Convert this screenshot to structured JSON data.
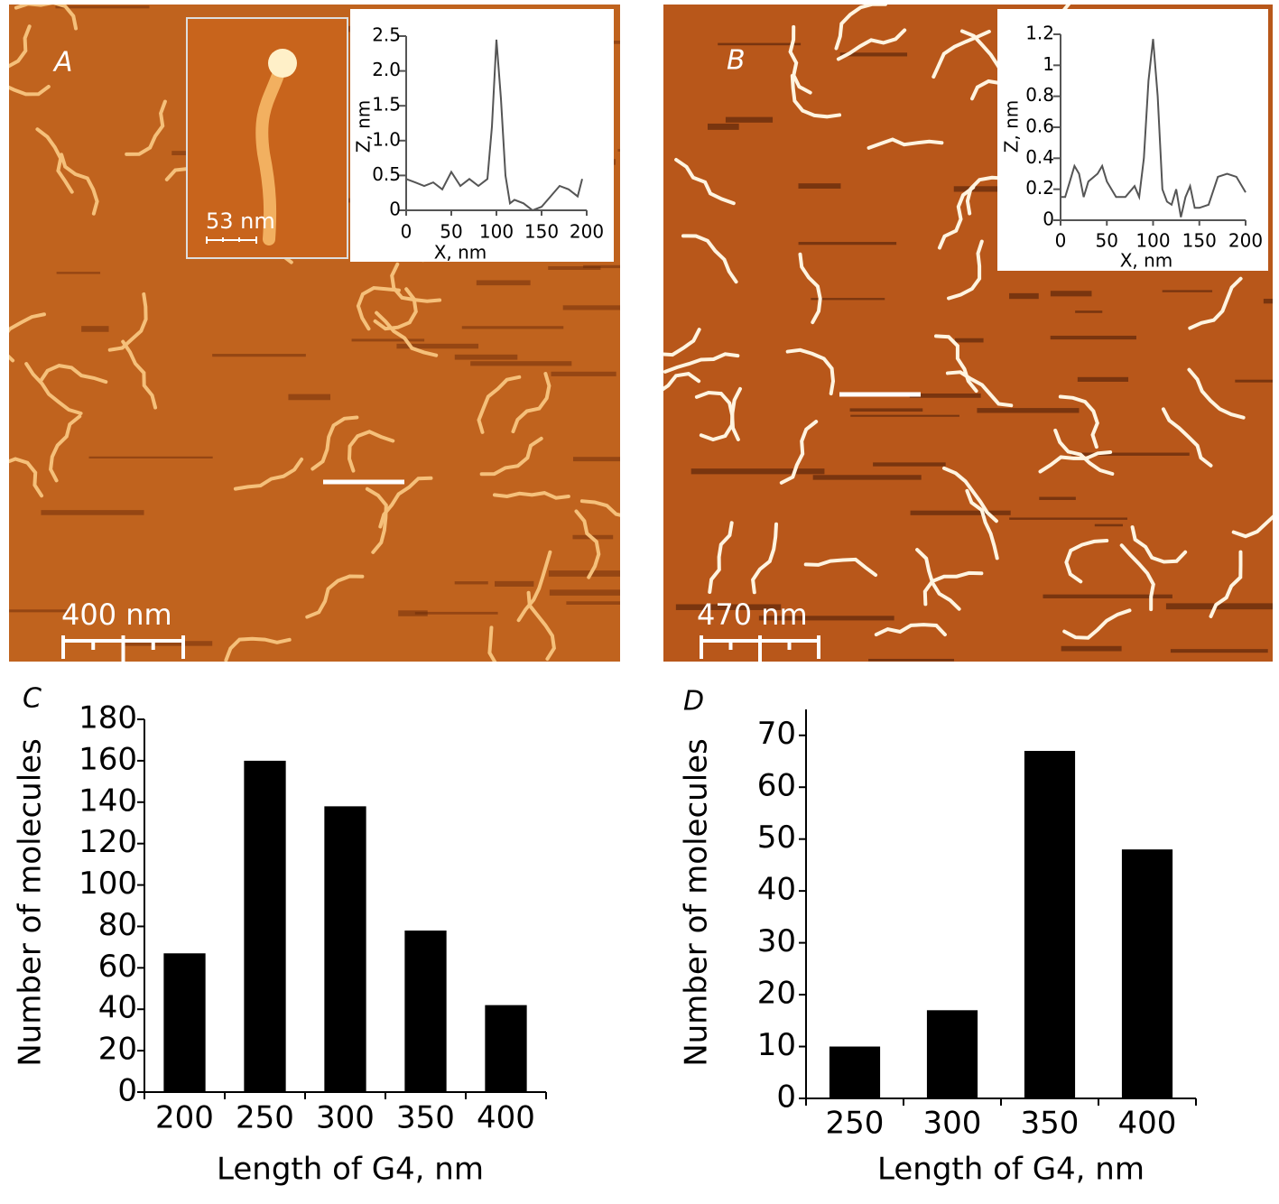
{
  "images": [
    {
      "panel_label": "A",
      "scale_bar": "400 nm",
      "inset_scale_bar": "53 nm"
    },
    {
      "panel_label": "B",
      "scale_bar": "470 nm"
    }
  ],
  "chart_data": [
    {
      "type": "line",
      "x_label": "X, nm",
      "y_label": "Z, nm",
      "x": [
        0,
        10,
        20,
        30,
        40,
        50,
        60,
        70,
        80,
        90,
        95,
        100,
        105,
        110,
        115,
        120,
        130,
        140,
        150,
        160,
        170,
        180,
        190,
        195
      ],
      "series": [
        {
          "color": "#555555",
          "values": [
            0.45,
            0.4,
            0.35,
            0.4,
            0.3,
            0.55,
            0.35,
            0.45,
            0.35,
            0.45,
            1.2,
            2.45,
            1.6,
            0.5,
            0.1,
            0.15,
            0.1,
            0,
            0.05,
            0.2,
            0.35,
            0.3,
            0.2,
            0.45
          ]
        }
      ],
      "xlim": [
        0,
        200
      ],
      "xticks": [
        0,
        50,
        100,
        150,
        200
      ],
      "ylim": [
        0,
        2.5
      ],
      "yticks": [
        0,
        0.5,
        {
          "value": 1,
          "label": "1.0"
        },
        1.5,
        {
          "value": 2,
          "label": "2.0"
        },
        2.5
      ]
    },
    {
      "type": "line",
      "x_label": "X, nm",
      "y_label": "Z, nm",
      "x": [
        0,
        5,
        10,
        15,
        20,
        25,
        30,
        40,
        45,
        50,
        60,
        70,
        80,
        85,
        90,
        95,
        100,
        105,
        110,
        115,
        120,
        125,
        130,
        135,
        140,
        145,
        150,
        160,
        170,
        180,
        190,
        200
      ],
      "series": [
        {
          "color": "#555555",
          "values": [
            0.15,
            0.15,
            0.25,
            0.35,
            0.3,
            0.15,
            0.25,
            0.3,
            0.35,
            0.25,
            0.15,
            0.15,
            0.22,
            0.15,
            0.4,
            0.9,
            1.17,
            0.8,
            0.2,
            0.12,
            0.1,
            0.2,
            0.02,
            0.15,
            0.22,
            0.08,
            0.08,
            0.1,
            0.28,
            0.3,
            0.28,
            0.18
          ]
        }
      ],
      "xlim": [
        0,
        200
      ],
      "xticks": [
        0,
        50,
        100,
        150,
        200
      ],
      "ylim": [
        0,
        1.2
      ],
      "yticks": [
        0,
        0.2,
        0.4,
        0.6,
        0.8,
        1,
        1.2
      ]
    },
    {
      "type": "bar",
      "panel_label": "C",
      "x_label": "Length of G4, nm",
      "y_label": "Number of molecules",
      "categories": [
        "200",
        "250",
        "300",
        "350",
        "400"
      ],
      "values": [
        67,
        160,
        138,
        78,
        42
      ],
      "color": "#000000",
      "ylim": [
        0,
        180
      ],
      "yticks": [
        0,
        20,
        40,
        60,
        80,
        100,
        120,
        140,
        160,
        180
      ]
    },
    {
      "type": "bar",
      "panel_label": "D",
      "x_label": "Length of G4, nm",
      "y_label": "Number of molecules",
      "categories": [
        "250",
        "300",
        "350",
        "400"
      ],
      "values": [
        10,
        17,
        67,
        48
      ],
      "color": "#000000",
      "ylim": [
        0,
        75
      ],
      "yticks": [
        0,
        10,
        20,
        30,
        40,
        50,
        60,
        70
      ]
    }
  ]
}
